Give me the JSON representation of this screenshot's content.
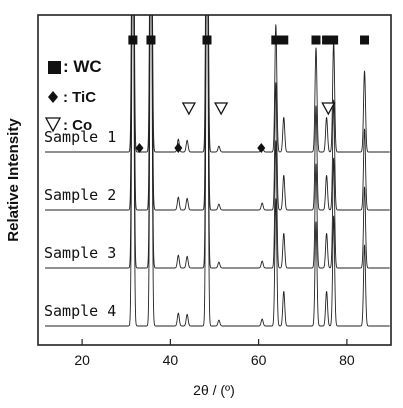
{
  "chart_data": {
    "type": "line",
    "title": "",
    "xlabel": "2θ / (º)",
    "ylabel": "Relative Intensity",
    "xlim": [
      10,
      90
    ],
    "xticks": [
      20,
      40,
      60,
      80
    ],
    "grid": false,
    "legend": {
      "placement": "top-left",
      "entries": [
        {
          "marker": "square",
          "label": ": WC"
        },
        {
          "marker": "diamond",
          "label": ": TiC"
        },
        {
          "marker": "triangle-down-open",
          "label": ": Co"
        }
      ]
    },
    "series": [
      {
        "name": "Sample 1",
        "baseline": 3.0
      },
      {
        "name": "Sample 2",
        "baseline": 2.0
      },
      {
        "name": "Sample 3",
        "baseline": 1.0
      },
      {
        "name": "Sample 4",
        "baseline": 0.0
      }
    ],
    "peaks": [
      {
        "x": 31.5,
        "h": 9.0
      },
      {
        "x": 35.6,
        "h": 9.0
      },
      {
        "x": 48.3,
        "h": 9.0
      },
      {
        "x": 63.9,
        "h": 2.2
      },
      {
        "x": 65.7,
        "h": 0.6
      },
      {
        "x": 73.0,
        "h": 1.8
      },
      {
        "x": 75.4,
        "h": 0.6
      },
      {
        "x": 77.0,
        "h": 1.9
      },
      {
        "x": 84.0,
        "h": 1.4
      },
      {
        "x": 35.9,
        "h": 0.15
      },
      {
        "x": 41.8,
        "h": 0.22
      },
      {
        "x": 43.8,
        "h": 0.2
      },
      {
        "x": 60.8,
        "h": 0.12
      },
      {
        "x": 51.0,
        "h": 0.1
      }
    ],
    "markers": {
      "WC": [
        31.5,
        35.6,
        48.3,
        63.9,
        65.7,
        73.0,
        75.4,
        77.0,
        84.0
      ],
      "TiC": [
        33.0,
        41.8,
        60.6
      ],
      "Co": [
        44.2,
        51.5,
        75.8
      ]
    }
  }
}
